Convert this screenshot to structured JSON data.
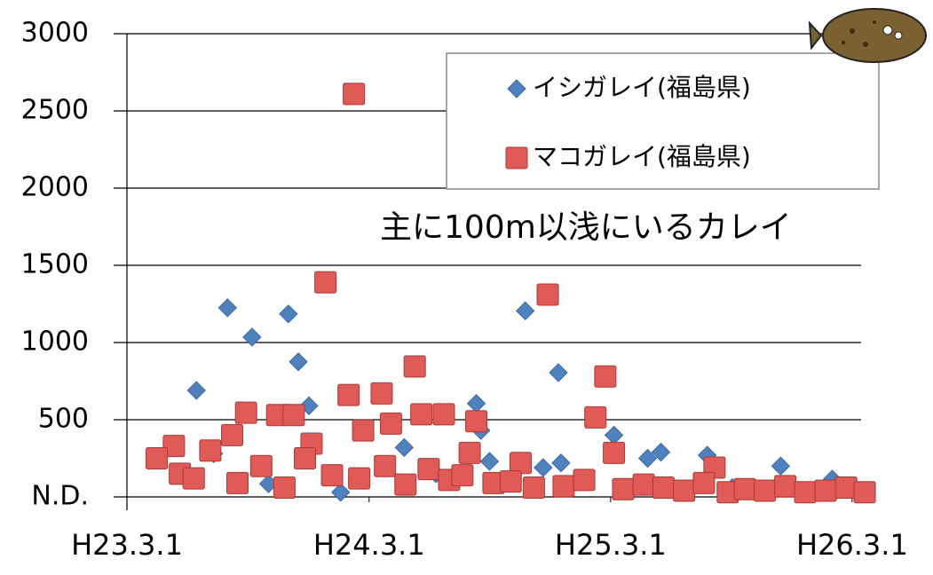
{
  "chart_data": {
    "type": "scatter",
    "annotation": "主に100m以浅にいるカレイ",
    "xlim": [
      "2011-03-01",
      "2014-04-01"
    ],
    "xticks": [
      {
        "value": "2011-03-01",
        "label": "H23.3.1"
      },
      {
        "value": "2012-03-01",
        "label": "H24.3.1"
      },
      {
        "value": "2013-03-01",
        "label": "H25.3.1"
      },
      {
        "value": "2014-03-01",
        "label": "H26.3.1"
      }
    ],
    "ylim": [
      0,
      3000
    ],
    "yticks": [
      {
        "value": 0,
        "label": "N.D."
      },
      500,
      1000,
      1500,
      2000,
      2500,
      3000
    ],
    "grid": true,
    "series": [
      {
        "name": "イシガレイ(福島県)",
        "color": "#4f81bd",
        "marker": "diamond",
        "x": [
          "2011-06-14",
          "2011-07-31",
          "2011-09-06",
          "2011-10-31",
          "2011-11-15",
          "2011-12-01",
          "2012-10-23",
          "2012-12-12",
          "2012-08-10",
          "2012-08-17",
          "2012-08-30",
          "2013-03-06",
          "2013-04-26",
          "2013-05-16",
          "2013-07-25",
          "2013-11-13",
          "2014-01-30",
          "2012-04-23",
          "2012-11-19",
          "2012-12-16",
          "2011-10-01",
          "2012-01-18",
          "2011-07-10",
          "2012-06-10",
          "2013-09-01"
        ],
        "values": [
          690,
          1225,
          1035,
          1185,
          875,
          590,
          1205,
          805,
          605,
          430,
          230,
          400,
          250,
          290,
          270,
          200,
          115,
          320,
          190,
          220,
          85,
          30,
          280,
          150,
          60
        ]
      },
      {
        "name": "マコガレイ(福島県)",
        "color": "#e05a57",
        "marker": "square",
        "x": [
          "2012-02-07",
          "2011-12-26",
          "2012-11-26",
          "2013-02-21",
          "2012-05-09",
          "2012-03-20",
          "2012-01-30",
          "2013-02-06",
          "2011-05-11",
          "2011-08-28",
          "2011-08-07",
          "2011-10-14",
          "2011-11-08",
          "2011-12-05",
          "2012-02-21",
          "2012-04-03",
          "2012-05-19",
          "2012-06-22",
          "2012-08-10",
          "2012-07-31",
          "2012-10-16",
          "2013-03-06",
          "2013-08-05",
          "2011-04-15",
          "2011-05-20",
          "2011-06-10",
          "2011-07-05",
          "2011-08-15",
          "2011-09-20",
          "2011-10-25",
          "2011-11-25",
          "2012-01-05",
          "2012-02-15",
          "2012-03-25",
          "2012-04-25",
          "2012-05-30",
          "2012-06-30",
          "2012-07-20",
          "2012-09-05",
          "2012-10-01",
          "2012-11-05",
          "2012-12-20",
          "2013-01-20",
          "2013-03-20",
          "2013-04-20",
          "2013-05-20",
          "2013-06-20",
          "2013-07-20",
          "2013-08-25",
          "2013-09-20",
          "2013-10-20",
          "2013-11-20",
          "2013-12-20",
          "2014-01-20",
          "2014-02-20",
          "2014-03-20"
        ],
        "values": [
          2610,
          1390,
          1310,
          780,
          845,
          670,
          660,
          515,
          330,
          545,
          400,
          530,
          530,
          345,
          430,
          475,
          535,
          535,
          490,
          285,
          220,
          285,
          190,
          250,
          150,
          120,
          300,
          90,
          200,
          60,
          250,
          140,
          120,
          200,
          80,
          180,
          110,
          140,
          90,
          100,
          60,
          70,
          110,
          50,
          80,
          60,
          40,
          90,
          30,
          50,
          40,
          70,
          30,
          40,
          60,
          30
        ]
      }
    ]
  }
}
